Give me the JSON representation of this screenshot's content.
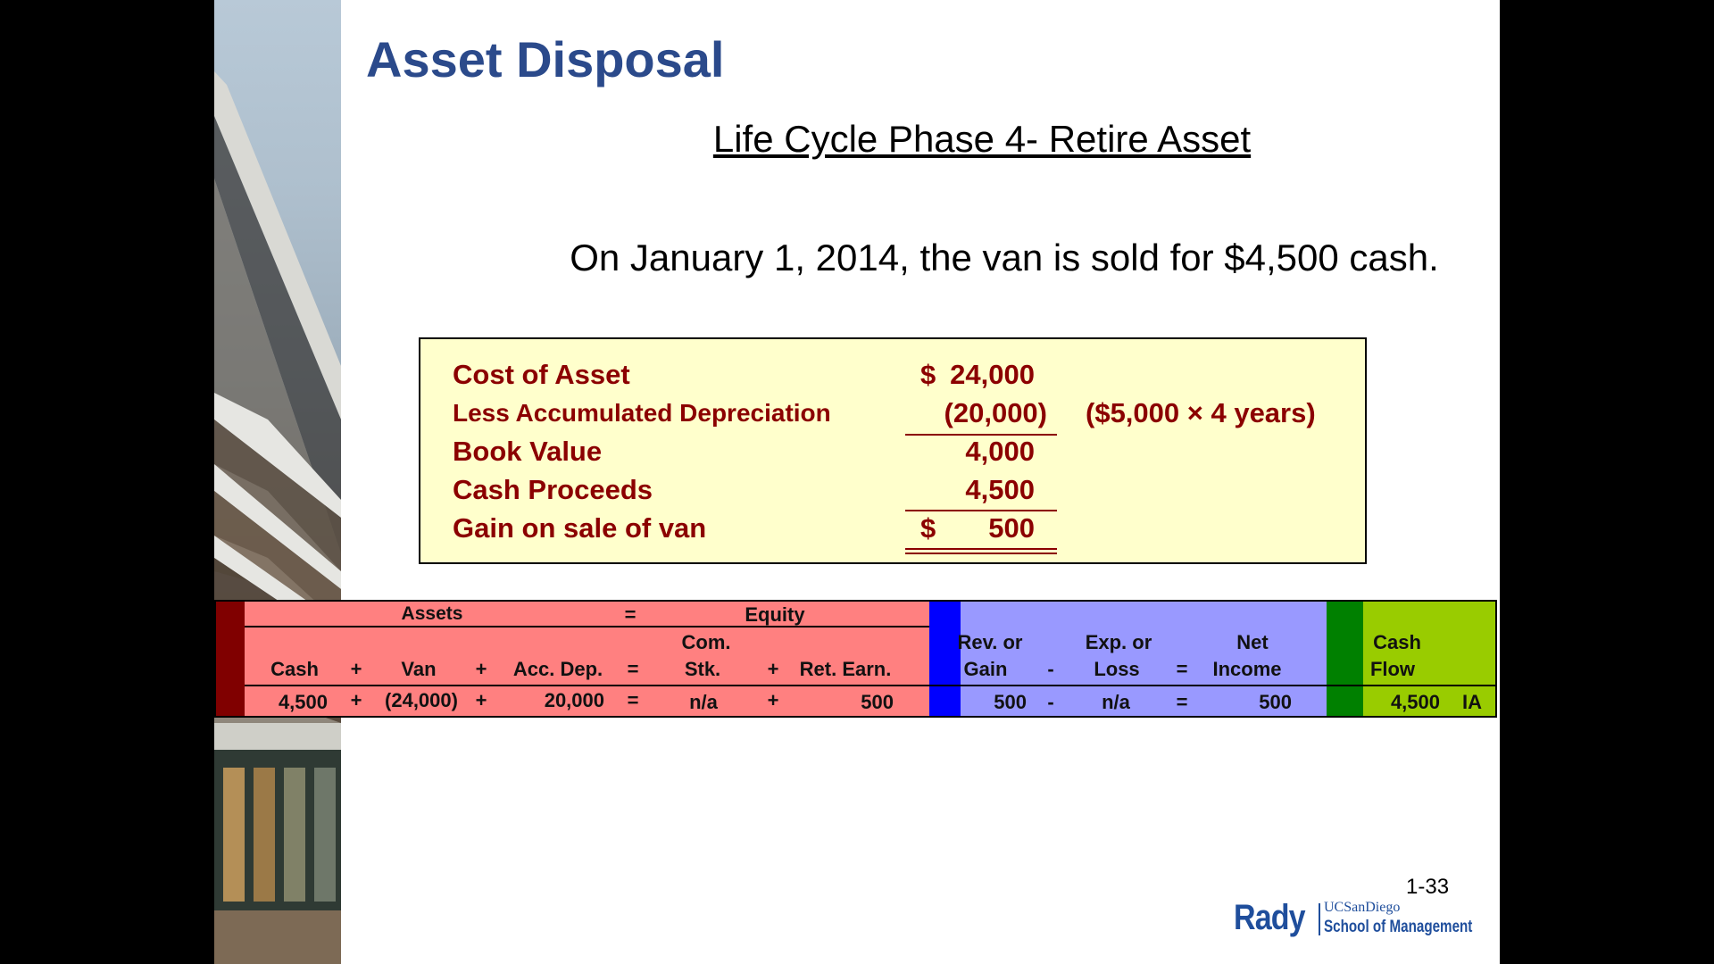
{
  "slide": {
    "title": "Asset Disposal",
    "subtitle": "Life Cycle Phase 4- Retire Asset",
    "statement": "On January 1, 2014, the van is sold for $4,500 cash.",
    "page_number": "1-33"
  },
  "calculation": {
    "rows": [
      {
        "label": "Cost of Asset",
        "dollar": "$",
        "value": "24,000",
        "note": ""
      },
      {
        "label": "Less Accumulated Depreciation",
        "dollar": "",
        "value": "(20,000)",
        "note": "($5,000 × 4 years)"
      },
      {
        "label": "Book Value",
        "dollar": "",
        "value": "4,000",
        "note": ""
      },
      {
        "label": "Cash Proceeds",
        "dollar": "",
        "value": "4,500",
        "note": ""
      },
      {
        "label": "Gain on sale of van",
        "dollar": "$",
        "value": "500",
        "note": ""
      }
    ]
  },
  "equation": {
    "group_headers": {
      "assets": "Assets",
      "equals": "=",
      "equity": "Equity"
    },
    "headers": {
      "cash": "Cash",
      "plus1": "+",
      "van": "Van",
      "plus2": "+",
      "acc_dep": "Acc. Dep.",
      "eq1": "=",
      "com_stk_1": "Com.",
      "com_stk_2": "Stk.",
      "plus3": "+",
      "ret_earn": "Ret. Earn.",
      "rev_1": "Rev. or",
      "rev_2": "Gain",
      "minus": "-",
      "exp_1": "Exp. or",
      "exp_2": "Loss",
      "eq2": "=",
      "net_1": "Net",
      "net_2": "Income",
      "cash_flow_1": "Cash",
      "cash_flow_2": "Flow"
    },
    "values": {
      "cash": "4,500",
      "plus1": "+",
      "van": "(24,000)",
      "plus2": "+",
      "acc_dep": "20,000",
      "eq1": "=",
      "com_stk": "n/a",
      "plus3": "+",
      "ret_earn": "500",
      "rev": "500",
      "minus": "-",
      "exp": "n/a",
      "eq2": "=",
      "net": "500",
      "cash_flow": "4,500",
      "cash_flow_type": "IA"
    },
    "colors": {
      "dark_red": "#800000",
      "salmon": "#ff8080",
      "blue": "#0000ff",
      "lavender": "#9999ff",
      "green": "#008000",
      "lime": "#99cc00"
    }
  },
  "logo": {
    "rady": "Rady",
    "ucsd": "UCSanDiego",
    "school": "School of Management"
  }
}
